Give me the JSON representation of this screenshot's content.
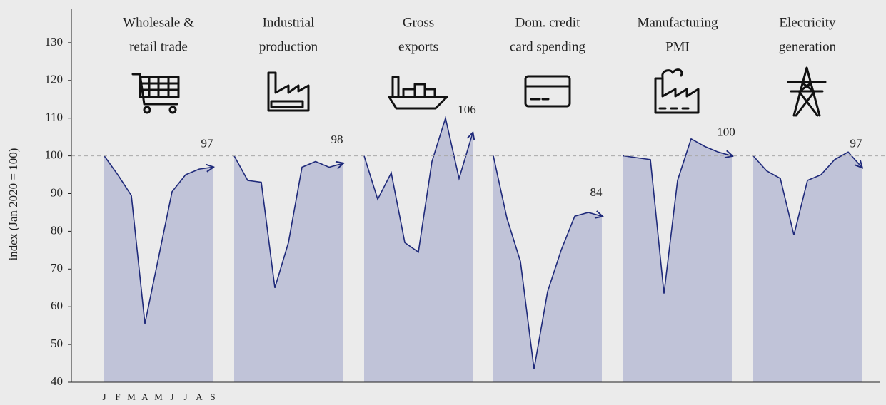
{
  "chart_data": [
    {
      "type": "area",
      "title": [
        "Wholesale &",
        "retail trade"
      ],
      "ylabel": "index (Jan 2020 = 100)",
      "categories": [
        "J",
        "F",
        "M",
        "A",
        "M",
        "J",
        "J",
        "A",
        "S"
      ],
      "values": [
        100,
        95,
        89.5,
        55.5,
        73,
        90.5,
        95,
        96.5,
        97
      ],
      "ylim": [
        40,
        140
      ],
      "yticks": [
        40,
        50,
        60,
        70,
        80,
        90,
        100,
        110,
        120,
        130
      ],
      "reference_line": 100,
      "color": "#1f2a7a",
      "fill": "#c0c3d8"
    },
    {
      "type": "area",
      "title": [
        "Industrial",
        "production"
      ],
      "values": [
        100,
        93.5,
        93,
        65,
        77,
        97,
        98.5,
        97,
        98
      ],
      "ylim": [
        40,
        140
      ],
      "color": "#1f2a7a",
      "fill": "#c0c3d8"
    },
    {
      "type": "area",
      "title": [
        "Gross",
        "exports"
      ],
      "values": [
        100,
        88.5,
        95.5,
        77,
        74.5,
        98.5,
        110,
        94,
        106
      ],
      "ylim": [
        40,
        140
      ],
      "color": "#1f2a7a",
      "fill": "#c0c3d8"
    },
    {
      "type": "area",
      "title": [
        "Dom. credit",
        "card spending"
      ],
      "values": [
        100,
        83.5,
        72,
        43.5,
        64,
        75,
        84,
        85,
        84
      ],
      "ylim": [
        40,
        140
      ],
      "color": "#1f2a7a",
      "fill": "#c0c3d8"
    },
    {
      "type": "area",
      "title": [
        "Manufacturing",
        "PMI"
      ],
      "values": [
        100,
        99.5,
        99,
        63.5,
        93.5,
        104.5,
        102.5,
        101,
        100
      ],
      "ylim": [
        40,
        140
      ],
      "color": "#1f2a7a",
      "fill": "#c0c3d8"
    },
    {
      "type": "area",
      "title": [
        "Electricity",
        "generation"
      ],
      "values": [
        100,
        96,
        94,
        79,
        93.5,
        95,
        99,
        101,
        97
      ],
      "ylim": [
        40,
        140
      ],
      "color": "#1f2a7a",
      "fill": "#c0c3d8"
    }
  ]
}
